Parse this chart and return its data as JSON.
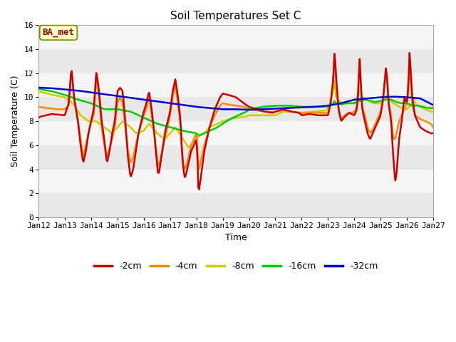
{
  "title": "Soil Temperatures Set C",
  "xlabel": "Time",
  "ylabel": "Soil Temperature (C)",
  "annotation": "BA_met",
  "ylim": [
    0,
    16
  ],
  "yticks": [
    0,
    2,
    4,
    6,
    8,
    10,
    12,
    14,
    16
  ],
  "colors": {
    "-2cm": "#cc0000",
    "-4cm": "#ff8800",
    "-8cm": "#cccc00",
    "-16cm": "#00cc00",
    "-32cm": "#0000cc"
  },
  "legend_labels": [
    "-2cm",
    "-4cm",
    "-8cm",
    "-16cm",
    "-32cm"
  ],
  "x_tick_labels": [
    "Jan 12",
    "Jan 13",
    "Jan 14",
    "Jan 15",
    "Jan 16",
    "Jan 17",
    "Jan 18",
    "Jan 19",
    "Jan 20",
    "Jan 21",
    "Jan 22",
    "Jan 23",
    "Jan 24",
    "Jan 25",
    "Jan 26",
    "Jan 27"
  ],
  "band_colors": [
    "#e8e8e8",
    "#f5f5f5"
  ],
  "n_points": 500
}
